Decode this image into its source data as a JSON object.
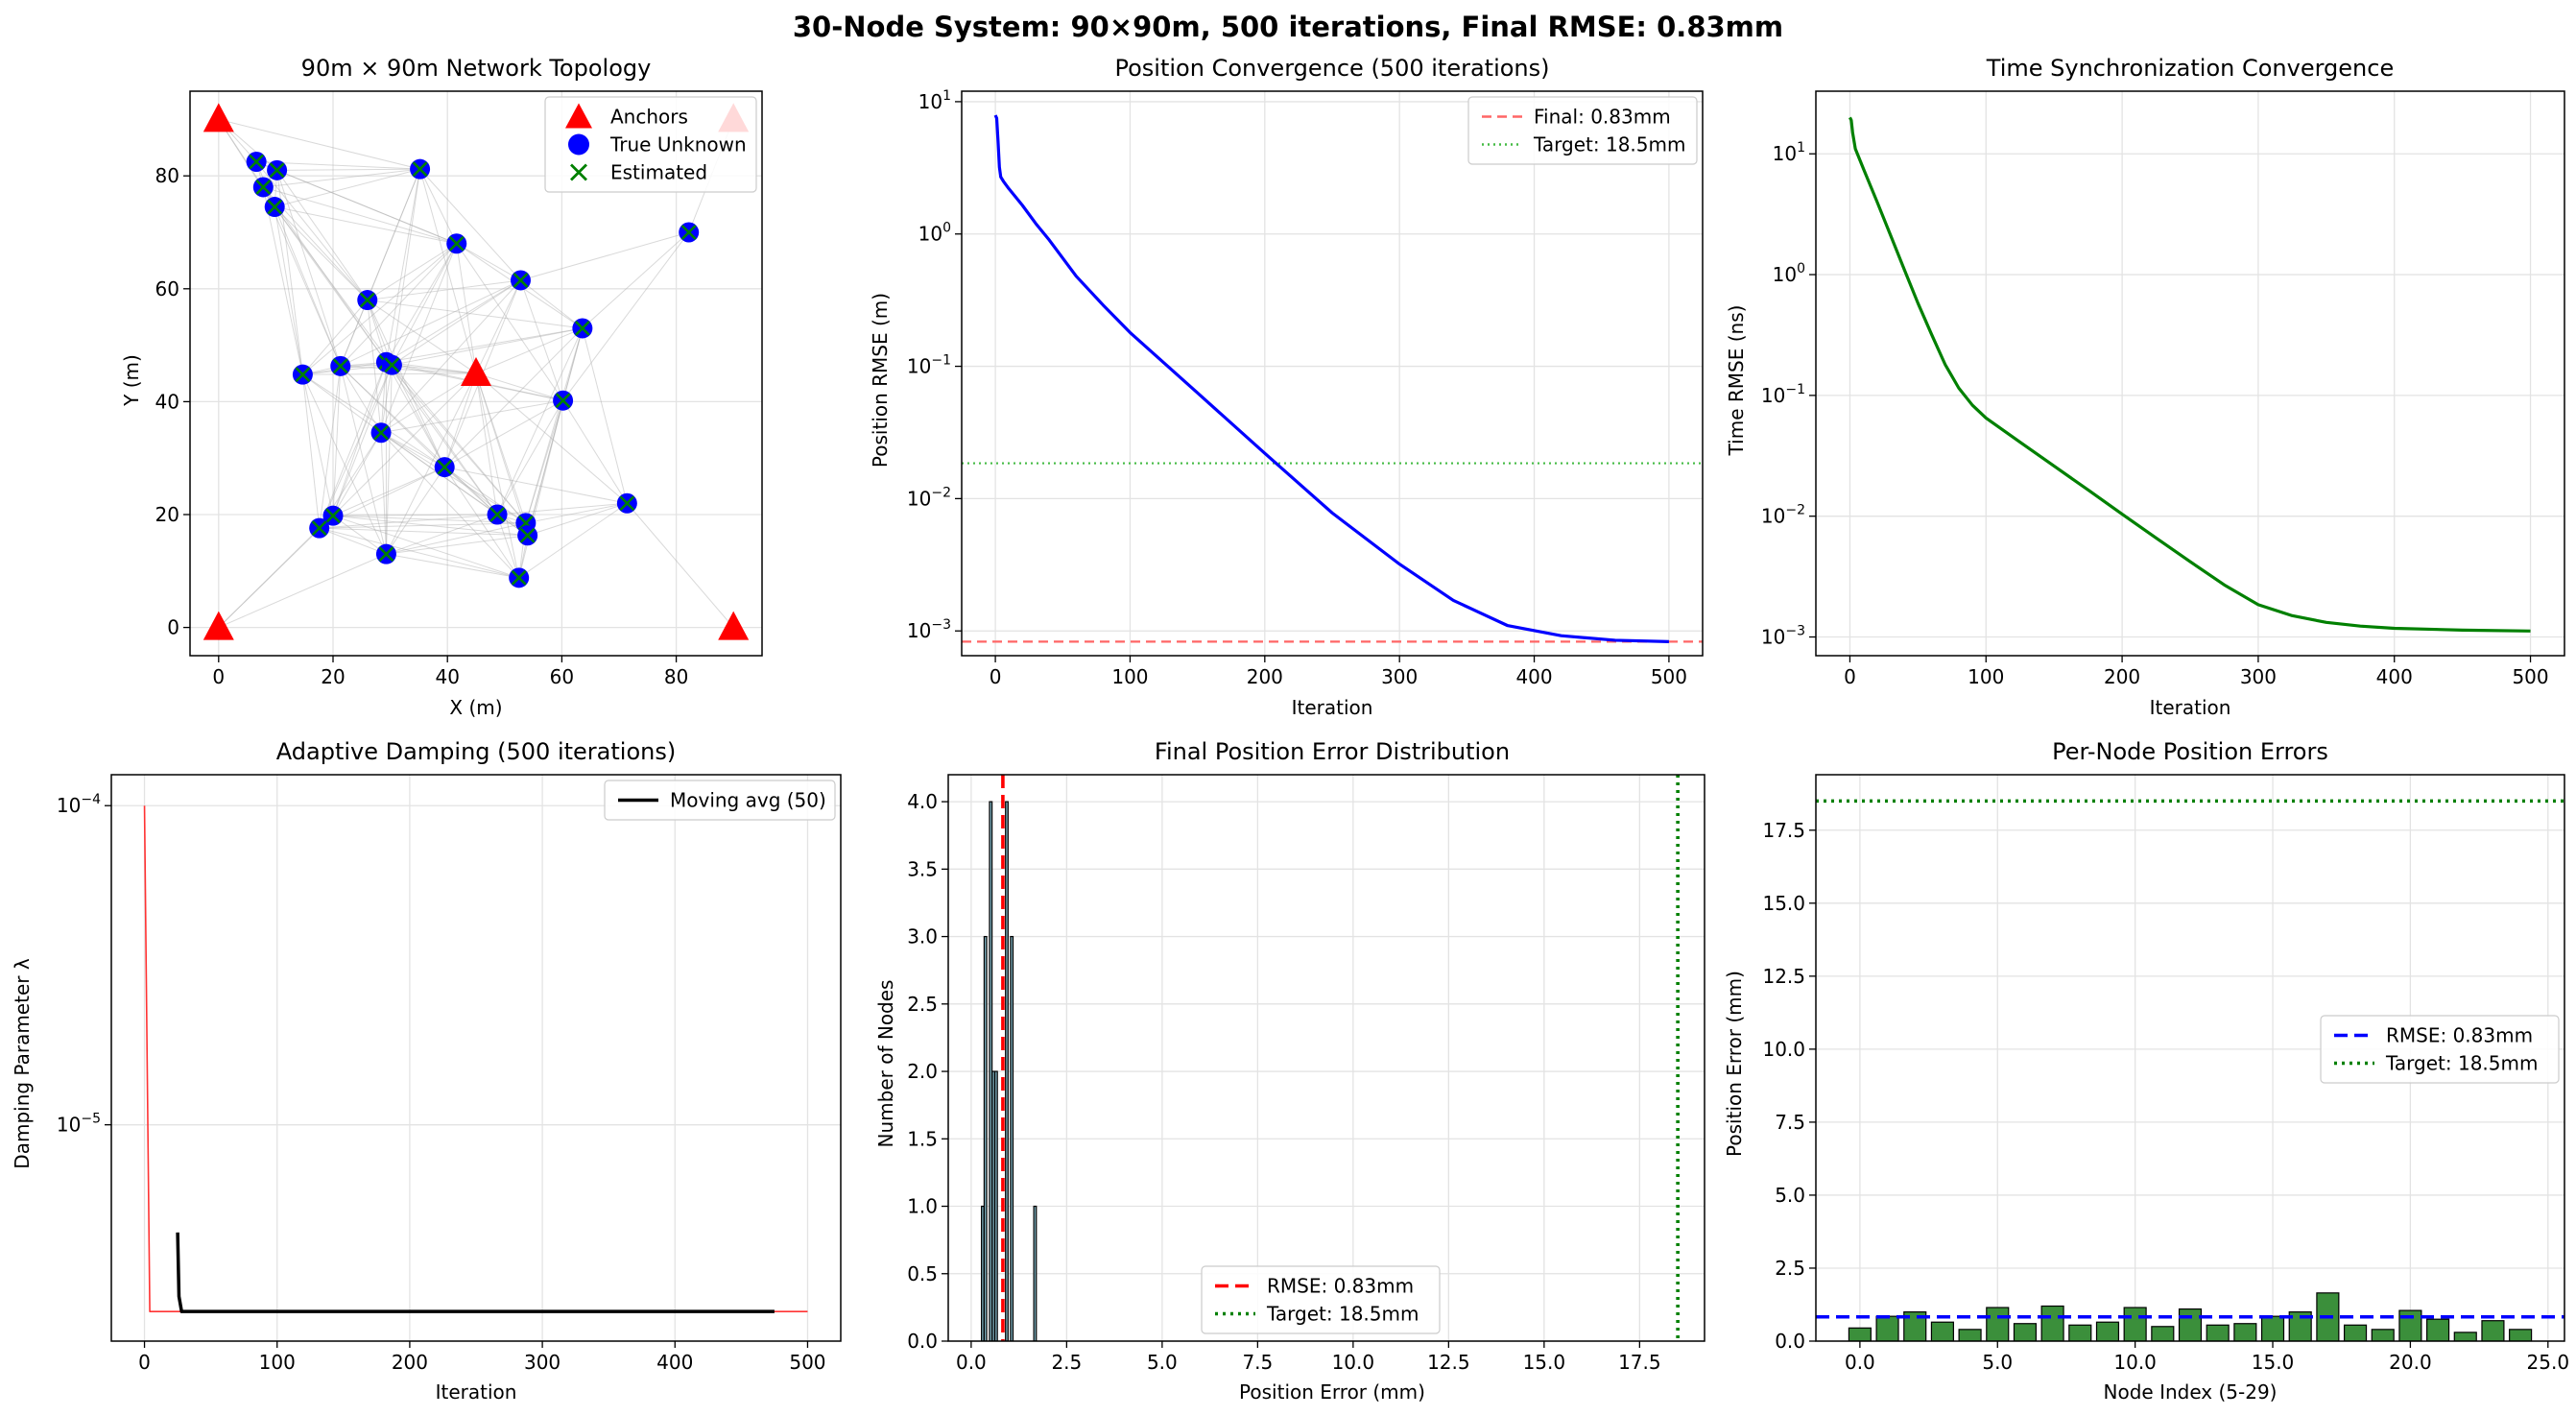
{
  "suptitle": "30-Node System: 90×90m, 500 iterations, Final RMSE: 0.83mm",
  "chart_data": [
    {
      "type": "scatter",
      "title": "90m × 90m Network Topology",
      "xlabel": "X (m)",
      "ylabel": "Y (m)",
      "xlim": [
        -5,
        95
      ],
      "ylim": [
        -5,
        95
      ],
      "xticks": [
        0,
        20,
        40,
        60,
        80
      ],
      "yticks": [
        0,
        20,
        40,
        60,
        80
      ],
      "grid": true,
      "legend": {
        "position": "top-right",
        "entries": [
          "Anchors",
          "True Unknown",
          "Estimated"
        ]
      },
      "anchors": [
        [
          0,
          90
        ],
        [
          90,
          90
        ],
        [
          45,
          45
        ],
        [
          0,
          0
        ],
        [
          90,
          0
        ]
      ],
      "unknowns": [
        [
          6.6,
          82.5
        ],
        [
          10.2,
          81
        ],
        [
          7.8,
          78
        ],
        [
          9.8,
          74.5
        ],
        [
          35.2,
          81.2
        ],
        [
          41.6,
          68
        ],
        [
          82.2,
          70
        ],
        [
          52.8,
          61.5
        ],
        [
          26,
          58
        ],
        [
          63.6,
          53
        ],
        [
          29.3,
          47
        ],
        [
          30.3,
          46.5
        ],
        [
          21.3,
          46.3
        ],
        [
          14.7,
          44.8
        ],
        [
          60.2,
          40.2
        ],
        [
          28.4,
          34.5
        ],
        [
          39.5,
          28.4
        ],
        [
          71.4,
          22
        ],
        [
          48.7,
          20
        ],
        [
          53.7,
          18.5
        ],
        [
          20,
          19.8
        ],
        [
          17.6,
          17.6
        ],
        [
          54,
          16.3
        ],
        [
          29.3,
          13
        ],
        [
          52.5,
          8.8
        ]
      ],
      "link_color": "#aaaaaa"
    },
    {
      "type": "line",
      "title": "Position Convergence (500 iterations)",
      "xlabel": "Iteration",
      "ylabel": "Position RMSE (m)",
      "yscale": "log",
      "xlim": [
        -25,
        525
      ],
      "ylim": [
        0.00065,
        12
      ],
      "xticks": [
        0,
        100,
        200,
        300,
        400,
        500
      ],
      "yticks": [
        {
          "v": 10,
          "m": "10",
          "e": "1"
        },
        {
          "v": 1,
          "m": "10",
          "e": "0"
        },
        {
          "v": 0.1,
          "m": "10",
          "e": "−1"
        },
        {
          "v": 0.01,
          "m": "10",
          "e": "−2"
        },
        {
          "v": 0.001,
          "m": "10",
          "e": "−3"
        }
      ],
      "grid": true,
      "legend": {
        "position": "top-right",
        "entries": [
          "Final: 0.83mm",
          "Target: 18.5mm"
        ]
      },
      "series": [
        {
          "color": "#0000ff",
          "points": [
            [
              0,
              7.9
            ],
            [
              1,
              7.5
            ],
            [
              2,
              5
            ],
            [
              3,
              3.2
            ],
            [
              4,
              2.7
            ],
            [
              6,
              2.5
            ],
            [
              10,
              2.2
            ],
            [
              20,
              1.65
            ],
            [
              30,
              1.2
            ],
            [
              40,
              0.9
            ],
            [
              60,
              0.48
            ],
            [
              80,
              0.29
            ],
            [
              100,
              0.18
            ],
            [
              150,
              0.063
            ],
            [
              200,
              0.022
            ],
            [
              250,
              0.0078
            ],
            [
              300,
              0.0032
            ],
            [
              340,
              0.0017
            ],
            [
              380,
              0.0011
            ],
            [
              420,
              0.00092
            ],
            [
              460,
              0.00085
            ],
            [
              500,
              0.00083
            ]
          ]
        }
      ],
      "hlines": [
        {
          "value": 0.00083,
          "color": "#ff6666",
          "dash": "10,6",
          "label": "Final: 0.83mm"
        },
        {
          "value": 0.0185,
          "color": "#44bb44",
          "dash": "2,4",
          "label": "Target: 18.5mm"
        }
      ]
    },
    {
      "type": "line",
      "title": "Time Synchronization Convergence",
      "xlabel": "Iteration",
      "ylabel": "Time RMSE (ns)",
      "yscale": "log",
      "xlim": [
        -25,
        525
      ],
      "ylim": [
        0.0007,
        33
      ],
      "xticks": [
        0,
        100,
        200,
        300,
        400,
        500
      ],
      "yticks": [
        {
          "v": 10,
          "m": "10",
          "e": "1"
        },
        {
          "v": 1,
          "m": "10",
          "e": "0"
        },
        {
          "v": 0.1,
          "m": "10",
          "e": "−1"
        },
        {
          "v": 0.01,
          "m": "10",
          "e": "−2"
        },
        {
          "v": 0.001,
          "m": "10",
          "e": "−3"
        }
      ],
      "grid": true,
      "series": [
        {
          "color": "#008000",
          "points": [
            [
              0,
              20
            ],
            [
              1,
              19
            ],
            [
              2,
              15
            ],
            [
              4,
              11
            ],
            [
              10,
              7.5
            ],
            [
              20,
              4
            ],
            [
              30,
              2.1
            ],
            [
              40,
              1.1
            ],
            [
              50,
              0.58
            ],
            [
              60,
              0.32
            ],
            [
              70,
              0.18
            ],
            [
              80,
              0.115
            ],
            [
              90,
              0.083
            ],
            [
              100,
              0.065
            ],
            [
              125,
              0.041
            ],
            [
              150,
              0.026
            ],
            [
              175,
              0.0165
            ],
            [
              200,
              0.0104
            ],
            [
              225,
              0.0066
            ],
            [
              250,
              0.0042
            ],
            [
              275,
              0.0027
            ],
            [
              300,
              0.00185
            ],
            [
              325,
              0.0015
            ],
            [
              350,
              0.00132
            ],
            [
              375,
              0.00123
            ],
            [
              400,
              0.00118
            ],
            [
              450,
              0.00114
            ],
            [
              500,
              0.00112
            ]
          ]
        }
      ]
    },
    {
      "type": "line",
      "title": "Adaptive Damping (500 iterations)",
      "xlabel": "Iteration",
      "ylabel": "Damping Parameter λ",
      "yscale": "log",
      "xlim": [
        -25,
        525
      ],
      "ylim": [
        2.1e-06,
        0.000125
      ],
      "xticks": [
        0,
        100,
        200,
        300,
        400,
        500
      ],
      "yticks": [
        {
          "v": 0.0001,
          "m": "10",
          "e": "−4"
        },
        {
          "v": 1e-05,
          "m": "10",
          "e": "−5"
        }
      ],
      "grid": true,
      "legend": {
        "position": "top-right",
        "entries": [
          "Moving avg (50)"
        ]
      },
      "series": [
        {
          "color": "#ff3333",
          "width": 1.6,
          "points": [
            [
              0,
              0.0001
            ],
            [
              4,
              2.6e-06
            ],
            [
              500,
              2.6e-06
            ]
          ]
        },
        {
          "label": "Moving avg (50)",
          "color": "#000000",
          "width": 3.5,
          "points": [
            [
              25,
              4.6e-06
            ],
            [
              26,
              2.9e-06
            ],
            [
              28,
              2.6e-06
            ],
            [
              475,
              2.6e-06
            ]
          ]
        }
      ]
    },
    {
      "type": "bar",
      "title": "Final Position Error Distribution",
      "xlabel": "Position Error (mm)",
      "ylabel": "Number of Nodes",
      "xlim": [
        -0.6,
        19.2
      ],
      "ylim": [
        0,
        4.2
      ],
      "xticks": [
        0,
        2.5,
        5,
        7.5,
        10,
        12.5,
        15,
        17.5
      ],
      "yticks": [
        0,
        0.5,
        1,
        1.5,
        2,
        2.5,
        3,
        3.5,
        4
      ],
      "tick_decimals": 1,
      "grid": true,
      "legend": {
        "position": "bottom-center",
        "entries": [
          "RMSE: 0.83mm",
          "Target: 18.5mm"
        ]
      },
      "bin_width": 0.0663,
      "bins": [
        [
          0.27,
          1
        ],
        [
          0.34,
          3
        ],
        [
          0.48,
          4
        ],
        [
          0.55,
          2
        ],
        [
          0.62,
          2
        ],
        [
          0.9,
          4
        ],
        [
          1.03,
          3
        ],
        [
          1.64,
          1
        ]
      ],
      "bar_color": "#7aaab8",
      "vlines": [
        {
          "value": 0.83,
          "color": "#ff0000",
          "dash": "14,7",
          "label": "RMSE: 0.83mm"
        },
        {
          "value": 18.5,
          "color": "#008000",
          "dash": "3,5",
          "label": "Target: 18.5mm"
        }
      ]
    },
    {
      "type": "bar",
      "title": "Per-Node Position Errors",
      "xlabel": "Node Index (5-29)",
      "ylabel": "Position Error (mm)",
      "xlim": [
        -1.6,
        25.6
      ],
      "ylim": [
        0,
        19.4
      ],
      "xticks": [
        0,
        5,
        10,
        15,
        20,
        25
      ],
      "yticks": [
        0,
        2.5,
        5,
        7.5,
        10,
        12.5,
        15,
        17.5
      ],
      "tick_decimals": 1,
      "grid": true,
      "legend": {
        "position": "center-right",
        "entries": [
          "RMSE: 0.83mm",
          "Target: 18.5mm"
        ]
      },
      "categories": [
        0,
        1,
        2,
        3,
        4,
        5,
        6,
        7,
        8,
        9,
        10,
        11,
        12,
        13,
        14,
        15,
        16,
        17,
        18,
        19,
        20,
        21,
        22,
        23,
        24
      ],
      "values": [
        0.45,
        0.85,
        1.0,
        0.65,
        0.4,
        1.15,
        0.6,
        1.2,
        0.55,
        0.65,
        1.15,
        0.5,
        1.1,
        0.55,
        0.6,
        0.85,
        1.0,
        1.65,
        0.55,
        0.4,
        1.05,
        0.75,
        0.3,
        0.7,
        0.4
      ],
      "bar_color": "#3b8f3b",
      "hlines": [
        {
          "value": 0.83,
          "color": "#0000ff",
          "dash": "14,7",
          "label": "RMSE: 0.83mm"
        },
        {
          "value": 18.5,
          "color": "#008000",
          "dash": "3,5",
          "label": "Target: 18.5mm"
        }
      ]
    }
  ]
}
